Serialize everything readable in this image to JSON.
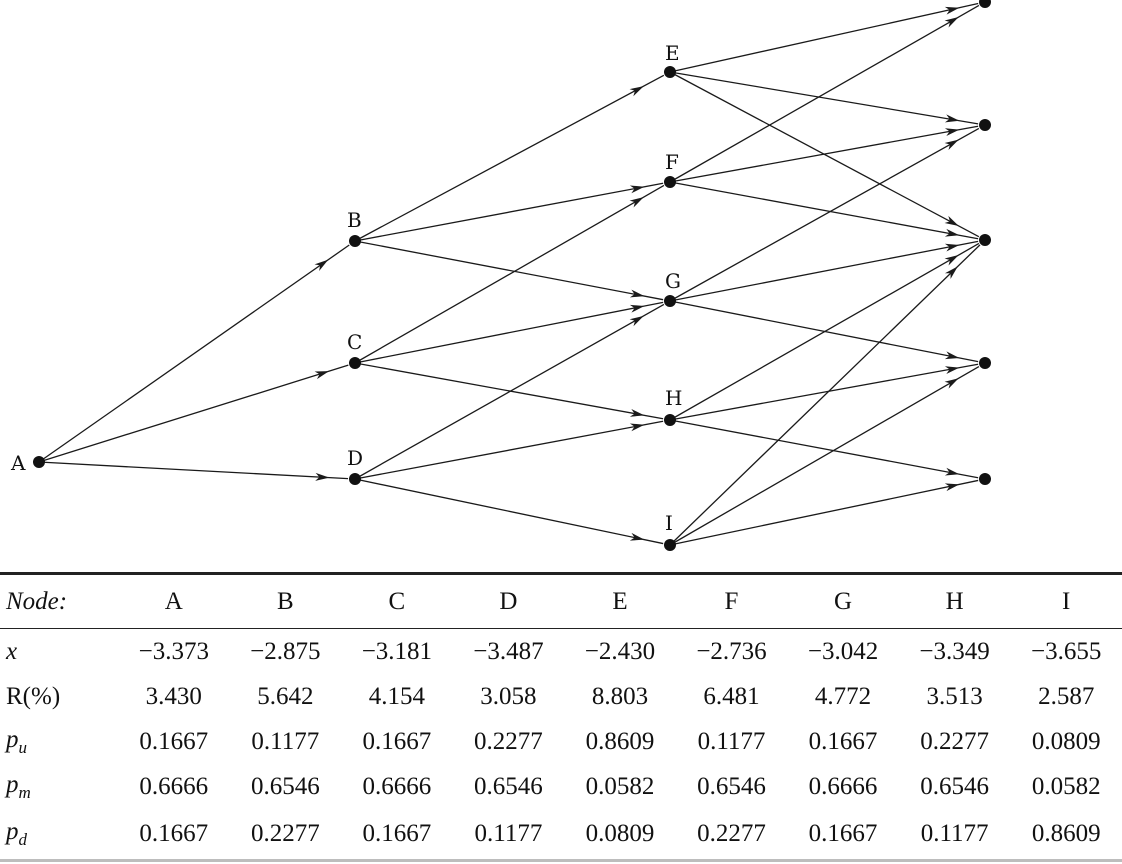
{
  "diagram": {
    "nodes": [
      {
        "id": "A",
        "label": "A"
      },
      {
        "id": "B",
        "label": "B"
      },
      {
        "id": "C",
        "label": "C"
      },
      {
        "id": "D",
        "label": "D"
      },
      {
        "id": "E",
        "label": "E"
      },
      {
        "id": "F",
        "label": "F"
      },
      {
        "id": "G",
        "label": "G"
      },
      {
        "id": "H",
        "label": "H"
      },
      {
        "id": "I",
        "label": "I"
      },
      {
        "id": "T1",
        "label": ""
      },
      {
        "id": "T2",
        "label": ""
      },
      {
        "id": "T3",
        "label": ""
      },
      {
        "id": "T4",
        "label": ""
      },
      {
        "id": "T5",
        "label": ""
      }
    ],
    "edges": [
      [
        "A",
        "B"
      ],
      [
        "A",
        "C"
      ],
      [
        "A",
        "D"
      ],
      [
        "B",
        "E"
      ],
      [
        "B",
        "F"
      ],
      [
        "B",
        "G"
      ],
      [
        "C",
        "F"
      ],
      [
        "C",
        "G"
      ],
      [
        "C",
        "H"
      ],
      [
        "D",
        "G"
      ],
      [
        "D",
        "H"
      ],
      [
        "D",
        "I"
      ],
      [
        "E",
        "T1"
      ],
      [
        "E",
        "T2"
      ],
      [
        "E",
        "T3"
      ],
      [
        "F",
        "T1"
      ],
      [
        "F",
        "T2"
      ],
      [
        "F",
        "T3"
      ],
      [
        "G",
        "T2"
      ],
      [
        "G",
        "T3"
      ],
      [
        "G",
        "T4"
      ],
      [
        "H",
        "T3"
      ],
      [
        "H",
        "T4"
      ],
      [
        "H",
        "T5"
      ],
      [
        "I",
        "T3"
      ],
      [
        "I",
        "T4"
      ],
      [
        "I",
        "T5"
      ]
    ]
  },
  "table": {
    "header_label": "Node:",
    "columns": [
      "A",
      "B",
      "C",
      "D",
      "E",
      "F",
      "G",
      "H",
      "I"
    ],
    "rows": [
      {
        "label": "x",
        "sub": "",
        "values": [
          "−3.373",
          "−2.875",
          "−3.181",
          "−3.487",
          "−2.430",
          "−2.736",
          "−3.042",
          "−3.349",
          "−3.655"
        ]
      },
      {
        "label": "R(%)",
        "sub": "",
        "values": [
          "3.430",
          "5.642",
          "4.154",
          "3.058",
          "8.803",
          "6.481",
          "4.772",
          "3.513",
          "2.587"
        ]
      },
      {
        "label": "p",
        "sub": "u",
        "values": [
          "0.1667",
          "0.1177",
          "0.1667",
          "0.2277",
          "0.8609",
          "0.1177",
          "0.1667",
          "0.2277",
          "0.0809"
        ]
      },
      {
        "label": "p",
        "sub": "m",
        "values": [
          "0.6666",
          "0.6546",
          "0.6666",
          "0.6546",
          "0.0582",
          "0.6546",
          "0.6666",
          "0.6546",
          "0.0582"
        ]
      },
      {
        "label": "p",
        "sub": "d",
        "values": [
          "0.1667",
          "0.2277",
          "0.1667",
          "0.1177",
          "0.0809",
          "0.2277",
          "0.1667",
          "0.1177",
          "0.8609"
        ]
      }
    ]
  }
}
